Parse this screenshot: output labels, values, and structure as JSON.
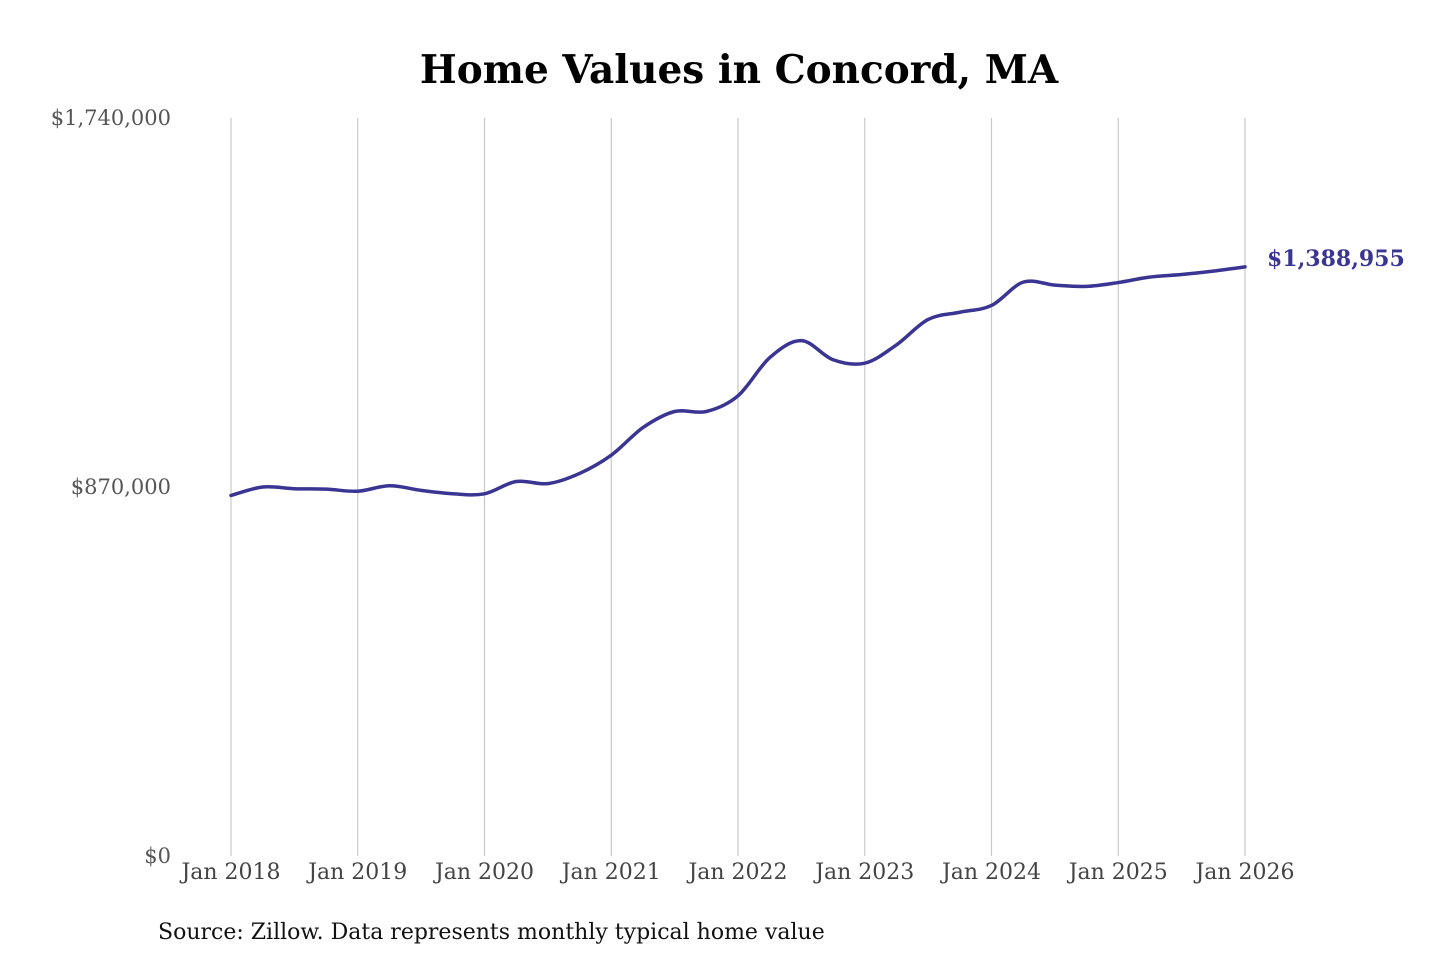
{
  "chart_data": {
    "type": "line",
    "title": "Home Values in Concord, MA",
    "source": "Source: Zillow. Data represents monthly typical home value",
    "ylim": [
      0,
      1740000
    ],
    "y_ticks": [
      {
        "value": 0,
        "label": "$0"
      },
      {
        "value": 870000,
        "label": "$870,000"
      },
      {
        "value": 1740000,
        "label": "$1,740,000"
      }
    ],
    "x_ticks": [
      {
        "value": "2018-01",
        "label": "Jan 2018"
      },
      {
        "value": "2019-01",
        "label": "Jan 2019"
      },
      {
        "value": "2020-01",
        "label": "Jan 2020"
      },
      {
        "value": "2021-01",
        "label": "Jan 2021"
      },
      {
        "value": "2022-01",
        "label": "Jan 2022"
      },
      {
        "value": "2023-01",
        "label": "Jan 2023"
      },
      {
        "value": "2024-01",
        "label": "Jan 2024"
      },
      {
        "value": "2025-01",
        "label": "Jan 2025"
      },
      {
        "value": "2026-01",
        "label": "Jan 2026"
      }
    ],
    "grid": "vertical",
    "line_color": "#3a3592",
    "end_label": "$1,388,955",
    "series": [
      {
        "points": [
          {
            "x": "2018-01",
            "y": 850000
          },
          {
            "x": "2018-04",
            "y": 870000
          },
          {
            "x": "2018-07",
            "y": 866000
          },
          {
            "x": "2018-10",
            "y": 865000
          },
          {
            "x": "2019-01",
            "y": 860000
          },
          {
            "x": "2019-04",
            "y": 873000
          },
          {
            "x": "2019-07",
            "y": 862000
          },
          {
            "x": "2019-10",
            "y": 854000
          },
          {
            "x": "2020-01",
            "y": 854000
          },
          {
            "x": "2020-04",
            "y": 883000
          },
          {
            "x": "2020-07",
            "y": 878000
          },
          {
            "x": "2020-10",
            "y": 902000
          },
          {
            "x": "2021-01",
            "y": 945000
          },
          {
            "x": "2021-04",
            "y": 1010000
          },
          {
            "x": "2021-07",
            "y": 1048000
          },
          {
            "x": "2021-10",
            "y": 1048000
          },
          {
            "x": "2022-01",
            "y": 1085000
          },
          {
            "x": "2022-04",
            "y": 1175000
          },
          {
            "x": "2022-07",
            "y": 1215000
          },
          {
            "x": "2022-10",
            "y": 1170000
          },
          {
            "x": "2023-01",
            "y": 1162000
          },
          {
            "x": "2023-04",
            "y": 1205000
          },
          {
            "x": "2023-07",
            "y": 1265000
          },
          {
            "x": "2023-10",
            "y": 1282000
          },
          {
            "x": "2024-01",
            "y": 1298000
          },
          {
            "x": "2024-04",
            "y": 1353000
          },
          {
            "x": "2024-07",
            "y": 1346000
          },
          {
            "x": "2024-10",
            "y": 1343000
          },
          {
            "x": "2025-01",
            "y": 1352000
          },
          {
            "x": "2025-04",
            "y": 1365000
          },
          {
            "x": "2025-07",
            "y": 1371000
          },
          {
            "x": "2025-10",
            "y": 1379000
          },
          {
            "x": "2026-01",
            "y": 1388955
          }
        ]
      }
    ]
  }
}
